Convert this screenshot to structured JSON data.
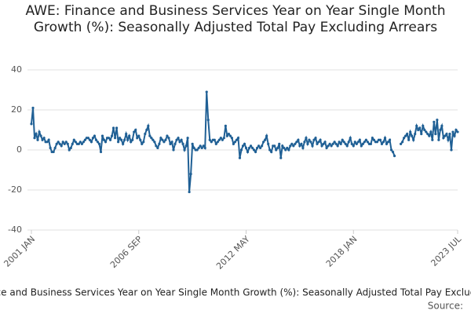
{
  "chart_data": {
    "type": "line",
    "title": "AWE: Finance and Business Services Year on Year Single Month Growth (%): Seasonally Adjusted Total Pay Excluding Arrears",
    "source": "Source:",
    "categories": [
      "2001 JAN",
      null,
      null,
      null,
      null,
      null,
      null,
      null,
      null,
      null,
      null,
      null,
      null,
      null,
      null,
      null,
      null,
      null,
      null,
      null,
      null,
      null,
      null,
      null,
      null,
      null,
      null,
      null,
      null,
      null,
      null,
      null,
      null,
      null,
      null,
      null,
      null,
      null,
      null,
      null,
      null,
      null,
      null,
      null,
      null,
      null,
      null,
      null,
      null,
      null,
      null,
      null,
      null,
      null,
      null,
      null,
      null,
      null,
      null,
      null,
      null,
      null,
      null,
      null,
      null,
      null,
      null,
      null,
      "2006 SEP",
      null,
      null,
      null,
      null,
      null,
      null,
      null,
      null,
      null,
      null,
      null,
      null,
      null,
      null,
      null,
      null,
      null,
      null,
      null,
      null,
      null,
      null,
      null,
      null,
      null,
      null,
      null,
      null,
      null,
      null,
      null,
      null,
      null,
      null,
      null,
      null,
      null,
      null,
      null,
      null,
      null,
      null,
      null,
      null,
      null,
      null,
      null,
      null,
      null,
      null,
      null,
      null,
      null,
      null,
      null,
      null,
      null,
      null,
      null,
      null,
      null,
      null,
      null,
      null,
      null,
      null,
      null,
      "2012 MAY",
      null,
      null,
      null,
      null,
      null,
      null,
      null,
      null,
      null,
      null,
      null,
      null,
      null,
      null,
      null,
      null,
      null,
      null,
      null,
      null,
      null,
      null,
      null,
      null,
      null,
      null,
      null,
      null,
      null,
      null,
      null,
      null,
      null,
      null,
      null,
      null,
      null,
      null,
      null,
      null,
      null,
      null,
      null,
      null,
      null,
      null,
      null,
      null,
      null,
      null,
      null,
      null,
      null,
      null,
      null,
      null,
      null,
      null,
      null,
      null,
      null,
      null,
      null,
      null,
      null,
      null,
      null,
      "2018 JAN",
      null,
      null,
      null,
      null,
      null,
      null,
      null,
      null,
      null,
      null,
      null,
      null,
      null,
      null,
      null,
      null,
      null,
      null,
      null,
      null,
      null,
      null,
      null,
      null,
      null,
      null,
      null,
      null,
      null,
      null,
      null,
      null,
      null,
      null,
      null,
      null,
      null,
      null,
      null,
      null,
      null,
      null,
      null,
      null,
      null,
      null,
      null,
      null,
      null,
      null,
      null,
      null,
      null,
      null,
      null,
      null,
      null,
      null,
      null,
      null,
      null,
      null,
      null,
      null,
      null,
      "2023 JUL"
    ],
    "series": [
      {
        "name": "AWE: Finance and Business Services Year on Year Single Month Growth (%): Seasonally Adjusted Total Pay Excluding Arrears",
        "color": "#206095",
        "values": [
          13,
          21,
          6,
          8,
          5,
          9,
          7,
          5,
          6,
          4,
          4,
          5,
          1,
          -1,
          -1,
          1,
          3,
          4,
          3,
          2,
          4,
          3,
          4,
          3,
          0,
          1,
          3,
          5,
          4,
          3,
          3,
          4,
          3,
          4,
          5,
          6,
          6,
          5,
          4,
          6,
          7,
          5,
          4,
          3,
          -1,
          7,
          5,
          4,
          6,
          6,
          5,
          7,
          11,
          6,
          11,
          4,
          6,
          5,
          3,
          5,
          8,
          5,
          7,
          4,
          5,
          9,
          10,
          6,
          7,
          5,
          3,
          4,
          8,
          10,
          12,
          7,
          6,
          5,
          4,
          2,
          1,
          3,
          6,
          5,
          4,
          5,
          7,
          6,
          3,
          4,
          0,
          3,
          5,
          6,
          4,
          5,
          3,
          0,
          2,
          6,
          -21,
          -12,
          3,
          1,
          0,
          0,
          1,
          2,
          1,
          2,
          1,
          29,
          15,
          5,
          4,
          5,
          5,
          3,
          4,
          5,
          6,
          5,
          6,
          12,
          7,
          8,
          7,
          6,
          3,
          4,
          5,
          6,
          -4,
          0,
          2,
          3,
          1,
          -1,
          1,
          2,
          1,
          0,
          -1,
          1,
          2,
          1,
          2,
          4,
          5,
          7,
          3,
          0,
          -1,
          2,
          2,
          0,
          1,
          3,
          -4,
          2,
          1,
          0,
          1,
          0,
          2,
          3,
          2,
          3,
          4,
          5,
          2,
          3,
          1,
          4,
          6,
          3,
          5,
          4,
          2,
          5,
          6,
          3,
          4,
          5,
          2,
          3,
          4,
          1,
          2,
          3,
          2,
          3,
          4,
          3,
          2,
          4,
          3,
          5,
          4,
          3,
          2,
          4,
          6,
          3,
          2,
          4,
          3,
          4,
          5,
          2,
          3,
          4,
          5,
          4,
          3,
          3,
          6,
          5,
          4,
          4,
          5,
          5,
          3,
          4,
          6,
          3,
          4,
          5,
          0,
          -1,
          -3,
          null,
          null,
          null,
          3,
          4,
          6,
          7,
          8,
          5,
          9,
          7,
          5,
          8,
          12,
          10,
          11,
          8,
          12,
          10,
          9,
          8,
          7,
          9,
          5,
          14,
          8,
          15,
          5,
          10,
          12,
          6,
          7,
          8,
          5,
          8,
          0,
          9,
          7,
          10,
          9
        ]
      }
    ],
    "ylim": [
      -40,
      40
    ],
    "yticks": [
      -40,
      -20,
      0,
      20,
      40
    ],
    "grid": true
  }
}
